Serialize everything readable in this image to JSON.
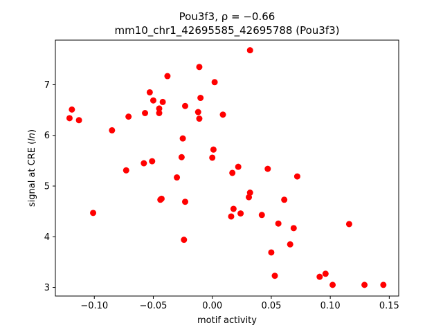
{
  "chart_data": {
    "type": "scatter",
    "title_line1": "Pou3f3, ρ = −0.66",
    "title_line2": "mm10_chr1_42695585_42695788 (Pou3f3)",
    "xlabel": "motif activity",
    "ylabel_prefix": "signal at CRE (",
    "ylabel_italic": "ln",
    "ylabel_suffix": ")",
    "xlim": [
      -0.133,
      0.158
    ],
    "ylim": [
      2.83,
      7.88
    ],
    "xticks": [
      -0.1,
      -0.05,
      0.0,
      0.05,
      0.1,
      0.15
    ],
    "xtick_labels": [
      "−0.10",
      "−0.05",
      "0.00",
      "0.05",
      "0.10",
      "0.15"
    ],
    "yticks": [
      3,
      4,
      5,
      6,
      7
    ],
    "ytick_labels": [
      "3",
      "4",
      "5",
      "6",
      "7"
    ],
    "grid": false,
    "marker_color": "#ff0000",
    "points": [
      {
        "x": 0.032,
        "y": 7.68
      },
      {
        "x": -0.011,
        "y": 7.35
      },
      {
        "x": -0.038,
        "y": 7.17
      },
      {
        "x": 0.002,
        "y": 7.05
      },
      {
        "x": -0.053,
        "y": 6.85
      },
      {
        "x": -0.01,
        "y": 6.74
      },
      {
        "x": -0.05,
        "y": 6.69
      },
      {
        "x": -0.042,
        "y": 6.66
      },
      {
        "x": -0.023,
        "y": 6.58
      },
      {
        "x": -0.045,
        "y": 6.53
      },
      {
        "x": -0.119,
        "y": 6.51
      },
      {
        "x": -0.012,
        "y": 6.46
      },
      {
        "x": -0.057,
        "y": 6.44
      },
      {
        "x": -0.045,
        "y": 6.44
      },
      {
        "x": 0.009,
        "y": 6.41
      },
      {
        "x": -0.071,
        "y": 6.37
      },
      {
        "x": -0.121,
        "y": 6.34
      },
      {
        "x": -0.011,
        "y": 6.33
      },
      {
        "x": -0.113,
        "y": 6.3
      },
      {
        "x": -0.085,
        "y": 6.1
      },
      {
        "x": -0.025,
        "y": 5.94
      },
      {
        "x": 0.001,
        "y": 5.72
      },
      {
        "x": -0.026,
        "y": 5.57
      },
      {
        "x": 0.0,
        "y": 5.56
      },
      {
        "x": -0.051,
        "y": 5.49
      },
      {
        "x": -0.058,
        "y": 5.45
      },
      {
        "x": 0.022,
        "y": 5.38
      },
      {
        "x": 0.047,
        "y": 5.34
      },
      {
        "x": -0.073,
        "y": 5.31
      },
      {
        "x": 0.017,
        "y": 5.26
      },
      {
        "x": 0.072,
        "y": 5.19
      },
      {
        "x": -0.03,
        "y": 5.17
      },
      {
        "x": 0.032,
        "y": 4.87
      },
      {
        "x": 0.031,
        "y": 4.78
      },
      {
        "x": -0.043,
        "y": 4.75
      },
      {
        "x": -0.044,
        "y": 4.73
      },
      {
        "x": 0.061,
        "y": 4.73
      },
      {
        "x": -0.023,
        "y": 4.69
      },
      {
        "x": 0.018,
        "y": 4.55
      },
      {
        "x": -0.101,
        "y": 4.47
      },
      {
        "x": 0.024,
        "y": 4.46
      },
      {
        "x": 0.042,
        "y": 4.43
      },
      {
        "x": 0.016,
        "y": 4.4
      },
      {
        "x": 0.056,
        "y": 4.26
      },
      {
        "x": 0.116,
        "y": 4.25
      },
      {
        "x": 0.069,
        "y": 4.17
      },
      {
        "x": -0.024,
        "y": 3.94
      },
      {
        "x": 0.066,
        "y": 3.85
      },
      {
        "x": 0.05,
        "y": 3.69
      },
      {
        "x": 0.096,
        "y": 3.27
      },
      {
        "x": 0.053,
        "y": 3.23
      },
      {
        "x": 0.091,
        "y": 3.21
      },
      {
        "x": 0.102,
        "y": 3.05
      },
      {
        "x": 0.129,
        "y": 3.05
      },
      {
        "x": 0.145,
        "y": 3.05
      }
    ]
  }
}
